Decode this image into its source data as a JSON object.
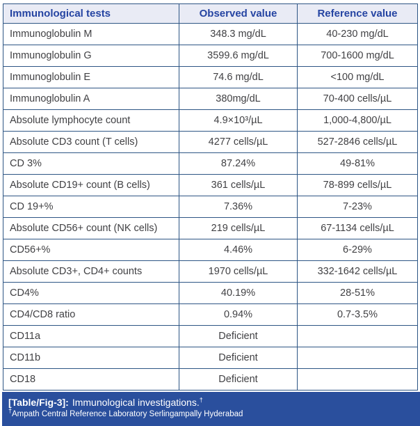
{
  "table": {
    "headers": [
      "Immunological tests",
      "Observed value",
      "Reference value"
    ],
    "rows": [
      [
        "Immunoglobulin M",
        "348.3 mg/dL",
        "40-230 mg/dL"
      ],
      [
        "Immunoglobulin G",
        "3599.6 mg/dL",
        "700-1600 mg/dL"
      ],
      [
        "Immunoglobulin E",
        "74.6 mg/dL",
        "<100 mg/dL"
      ],
      [
        "Immunoglobulin A",
        "380mg/dL",
        "70-400 cells/µL"
      ],
      [
        "Absolute lymphocyte count",
        "4.9×10³/µL",
        "1,000-4,800/µL"
      ],
      [
        "Absolute CD3 count (T cells)",
        "4277 cells/µL",
        "527-2846 cells/µL"
      ],
      [
        "CD 3%",
        "87.24%",
        "49-81%"
      ],
      [
        "Absolute CD19+ count (B cells)",
        "361 cells/µL",
        "78-899 cells/µL"
      ],
      [
        "CD 19+%",
        "7.36%",
        "7-23%"
      ],
      [
        "Absolute CD56+ count (NK cells)",
        "219 cells/µL",
        "67-1134 cells/µL"
      ],
      [
        "CD56+%",
        "4.46%",
        "6-29%"
      ],
      [
        "Absolute CD3+, CD4+ counts",
        "1970 cells/µL",
        "332-1642 cells/µL"
      ],
      [
        "CD4%",
        "40.19%",
        "28-51%"
      ],
      [
        "CD4/CD8 ratio",
        "0.94%",
        "0.7-3.5%"
      ],
      [
        "CD11a",
        "Deficient",
        ""
      ],
      [
        "CD11b",
        "Deficient",
        ""
      ],
      [
        "CD18",
        "Deficient",
        ""
      ]
    ]
  },
  "caption": {
    "label": "[Table/Fig-3]:",
    "text": "Immunological investigations.",
    "dagger": "†",
    "footnote": "Ampath Central Reference Laboratory Serlingampally Hyderabad"
  },
  "colors": {
    "header_background": "#e9ebf5",
    "header_text": "#2544a2",
    "table_border": "#2d5584",
    "body_text": "#414144",
    "caption_background": "#2a4f9d",
    "caption_text": "#ffffff"
  }
}
